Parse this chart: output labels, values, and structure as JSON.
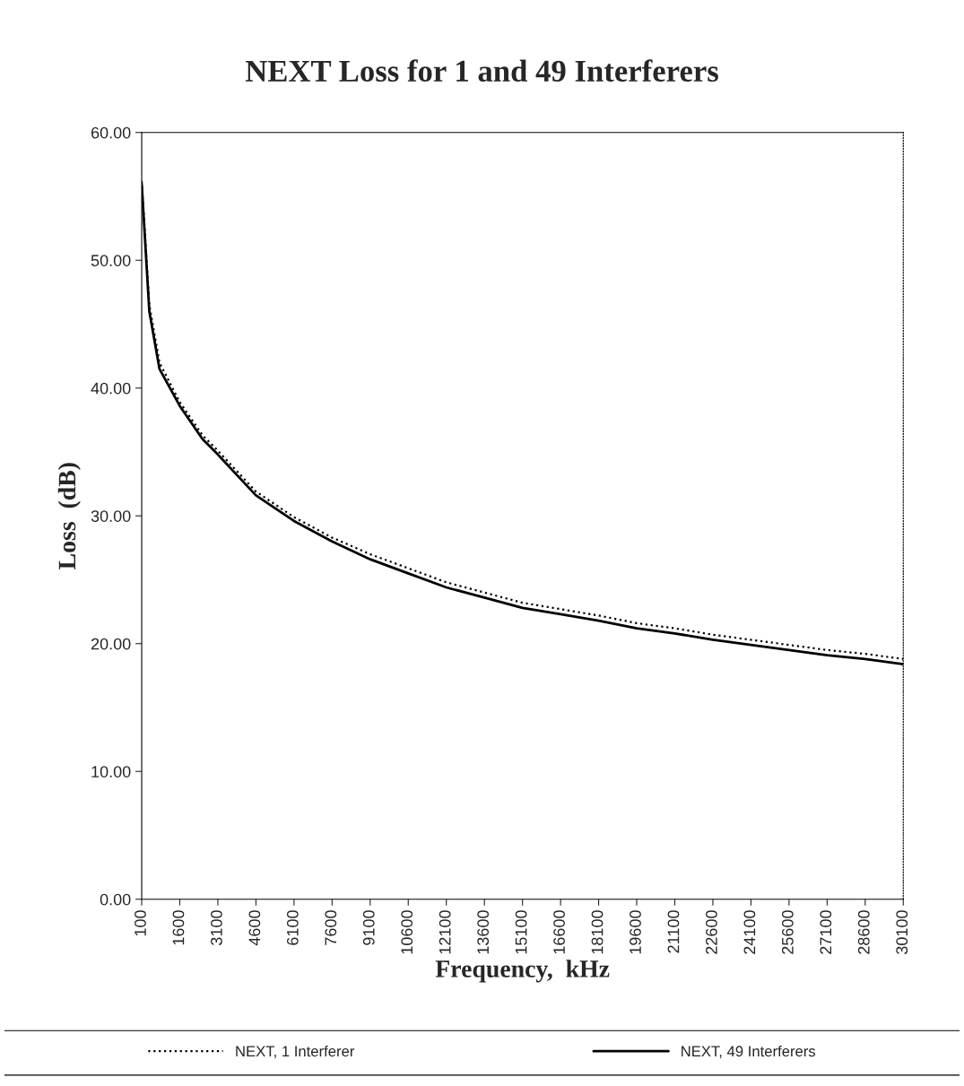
{
  "chart_data": {
    "type": "line",
    "title": "NEXT Loss for 1 and 49 Interferers",
    "xlabel": "Frequency,  kHz",
    "ylabel": "Loss  (dB)",
    "series": [
      {
        "name": "NEXT, 1 Interferer",
        "color": "#000000",
        "line_style": "dotted",
        "x": [
          100,
          400,
          800,
          1600,
          2500,
          3100,
          4600,
          6100,
          7600,
          9100,
          10600,
          12100,
          13600,
          15100,
          16600,
          18100,
          19600,
          21100,
          22600,
          24100,
          25600,
          27100,
          28600,
          30100
        ],
        "values": [
          56.2,
          46.5,
          42.0,
          38.9,
          36.3,
          35.1,
          31.9,
          29.9,
          28.3,
          27.0,
          25.9,
          24.8,
          24.0,
          23.2,
          22.7,
          22.2,
          21.6,
          21.2,
          20.7,
          20.3,
          19.9,
          19.5,
          19.2,
          18.8
        ]
      },
      {
        "name": "NEXT, 49 Interferers",
        "color": "#000000",
        "line_style": "solid",
        "x": [
          100,
          400,
          800,
          1600,
          2500,
          3100,
          4600,
          6100,
          7600,
          9100,
          10600,
          12100,
          13600,
          15100,
          16600,
          18100,
          19600,
          21100,
          22600,
          24100,
          25600,
          27100,
          28600,
          30100
        ],
        "values": [
          56.0,
          46.0,
          41.5,
          38.6,
          36.0,
          34.8,
          31.6,
          29.6,
          28.0,
          26.6,
          25.5,
          24.4,
          23.6,
          22.8,
          22.3,
          21.8,
          21.2,
          20.8,
          20.3,
          19.9,
          19.5,
          19.1,
          18.8,
          18.4
        ]
      }
    ],
    "xlim": [
      100,
      30100
    ],
    "xticks": [
      100,
      1600,
      3100,
      4600,
      6100,
      7600,
      9100,
      10600,
      12100,
      13600,
      15100,
      16600,
      18100,
      19600,
      21100,
      22600,
      24100,
      25600,
      27100,
      28600,
      30100
    ],
    "ylim": [
      0,
      60
    ],
    "yticks": [
      {
        "value": 0,
        "label": "0.00"
      },
      {
        "value": 10,
        "label": "10.00"
      },
      {
        "value": 20,
        "label": "20.00"
      },
      {
        "value": 30,
        "label": "30.00"
      },
      {
        "value": 40,
        "label": "40.00"
      },
      {
        "value": 50,
        "label": "50.00"
      },
      {
        "value": 60,
        "label": "60.00"
      }
    ],
    "grid": false,
    "legend": "bottom",
    "marker": "none"
  }
}
